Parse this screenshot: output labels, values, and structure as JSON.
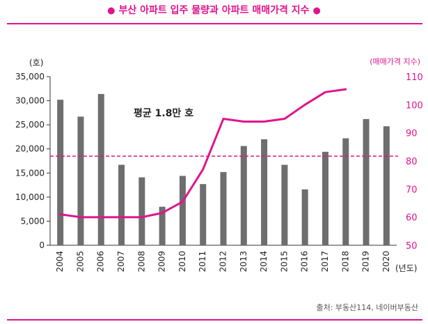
{
  "title_text": "부산 아파트 입주 물량과 아파트 매매가격 지수",
  "source": "출처: 부동산114, 네이버부동산",
  "colors": {
    "accent": "#e0148c",
    "bar": "#6e6e6e"
  },
  "chart_data": {
    "type": "bar",
    "categories": [
      "2004",
      "2005",
      "2006",
      "2007",
      "2008",
      "2009",
      "2010",
      "2011",
      "2012",
      "2013",
      "2014",
      "2015",
      "2016",
      "2017",
      "2018",
      "2019",
      "2020"
    ],
    "series": [
      {
        "type": "bar",
        "axis": "left",
        "values": [
          30200,
          26700,
          31400,
          16700,
          14100,
          8000,
          14400,
          12700,
          15200,
          20600,
          22000,
          16700,
          11600,
          19400,
          22200,
          26200,
          24700
        ]
      },
      {
        "type": "line",
        "axis": "right",
        "values": [
          61,
          60,
          60,
          60,
          60,
          61.5,
          65.5,
          77,
          95,
          94,
          94,
          95,
          100,
          104.5,
          105.5,
          null,
          null
        ]
      }
    ],
    "reference_line": {
      "axis": "left",
      "value": 18500,
      "label": "평균 1.8만 호"
    },
    "y_left": {
      "unit": "(호)",
      "min": 0,
      "max": 35000,
      "ticks": [
        0,
        5000,
        10000,
        15000,
        20000,
        25000,
        30000,
        35000
      ]
    },
    "y_right": {
      "unit": "(매매가격 지수)",
      "min": 50,
      "max": 110,
      "ticks": [
        50,
        60,
        70,
        80,
        90,
        100,
        110
      ]
    },
    "x_unit": "(년도)"
  }
}
